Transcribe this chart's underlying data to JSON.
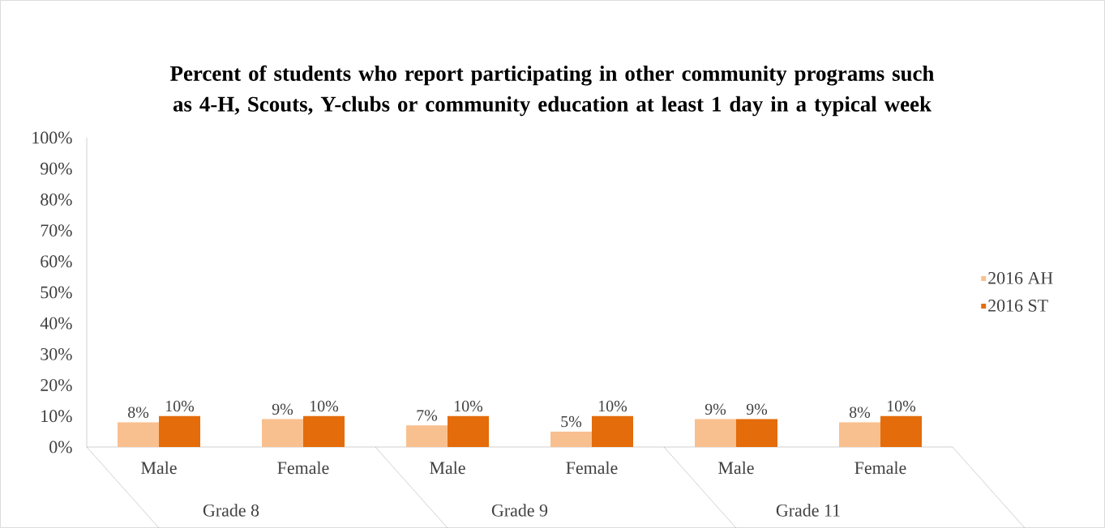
{
  "chart_data": {
    "type": "bar",
    "title": "Percent of students who report participating in other community programs such as 4-H, Scouts, Y-clubs or community education at least 1 day in a typical week",
    "categories": [
      "Male",
      "Female",
      "Male",
      "Female",
      "Male",
      "Female"
    ],
    "annotations": [
      "Grade 8",
      "Grade 9",
      "Grade 11"
    ],
    "series": [
      {
        "name": "2016 AH",
        "color": "#f9c08f",
        "values": [
          8,
          9,
          7,
          5,
          9,
          8
        ],
        "value_labels": [
          "8%",
          "9%",
          "7%",
          "5%",
          "9%",
          "8%"
        ]
      },
      {
        "name": "2016 ST",
        "color": "#e46c0a",
        "values": [
          10,
          10,
          10,
          10,
          9,
          10
        ],
        "value_labels": [
          "10%",
          "10%",
          "10%",
          "10%",
          "9%",
          "10%"
        ]
      }
    ],
    "ylim": [
      0,
      100
    ],
    "yticks": [
      {
        "value": 0,
        "label": "0%"
      },
      {
        "value": 10,
        "label": "10%"
      },
      {
        "value": 20,
        "label": "20%"
      },
      {
        "value": 30,
        "label": "30%"
      },
      {
        "value": 40,
        "label": "40%"
      },
      {
        "value": 50,
        "label": "50%"
      },
      {
        "value": 60,
        "label": "60%"
      },
      {
        "value": 70,
        "label": "70%"
      },
      {
        "value": 80,
        "label": "80%"
      },
      {
        "value": 90,
        "label": "90%"
      },
      {
        "value": 100,
        "label": "100%"
      }
    ],
    "legend": "right"
  }
}
